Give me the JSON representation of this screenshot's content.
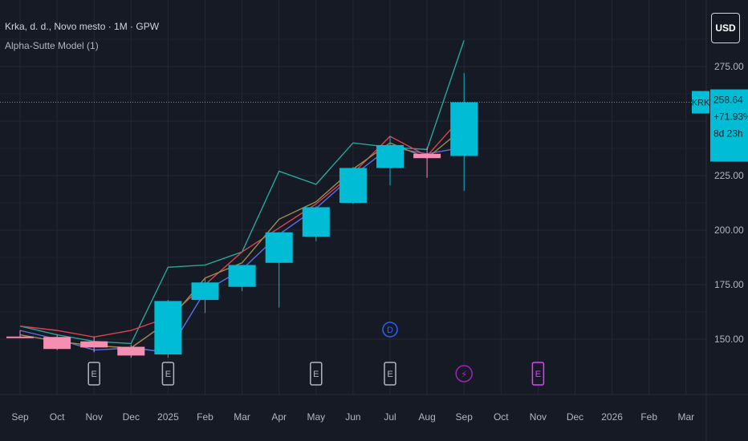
{
  "header": {
    "symbol_line": "Krka, d. d., Novo mesto · 1M · GPW",
    "indicator_line": "Alpha-Sutte Model (1)",
    "currency_button": "USD"
  },
  "price_tag": {
    "ticker": "KRK",
    "price": "258.64",
    "change": "+71.93%",
    "countdown": "8d 23h"
  },
  "colors": {
    "background": "#161a25",
    "grid": "#232835",
    "up": "#00bcd4",
    "down": "#f48fb1",
    "forecast_teal": "#26a69a",
    "forecast_blue": "#5b6ee8",
    "forecast_red": "#e0424f",
    "forecast_olive": "#9e8a52"
  },
  "chart_data": {
    "type": "candlestick",
    "x_ticks": [
      "Sep",
      "Oct",
      "Nov",
      "Dec",
      "2025",
      "Feb",
      "Mar",
      "Apr",
      "May",
      "Jun",
      "Jul",
      "Aug",
      "Sep",
      "Oct",
      "Nov",
      "Dec",
      "2026",
      "Feb",
      "Mar"
    ],
    "y_ticks": [
      150,
      175,
      200,
      225,
      250,
      275
    ],
    "y_tick_labels": [
      "150.00",
      "175.00",
      "200.00",
      "225.00",
      "250.00",
      "275.00"
    ],
    "ylim": [
      135,
      295
    ],
    "last_price": 258.64,
    "candles": [
      {
        "x": "Sep",
        "open": 151.2,
        "high": 154.0,
        "low": 150.5,
        "close": 150.7
      },
      {
        "x": "Oct",
        "open": 151.0,
        "high": 152.0,
        "low": 145.0,
        "close": 145.5
      },
      {
        "x": "Nov",
        "open": 149.0,
        "high": 151.0,
        "low": 144.0,
        "close": 146.2
      },
      {
        "x": "Dec",
        "open": 146.5,
        "high": 147.5,
        "low": 141.5,
        "close": 142.5
      },
      {
        "x": "2025",
        "open": 143.0,
        "high": 168.0,
        "low": 141.5,
        "close": 167.5
      },
      {
        "x": "Feb",
        "open": 168.0,
        "high": 178.0,
        "low": 162.0,
        "close": 176.0
      },
      {
        "x": "Mar",
        "open": 174.0,
        "high": 184.0,
        "low": 172.0,
        "close": 184.0
      },
      {
        "x": "Apr",
        "open": 185.0,
        "high": 199.0,
        "low": 164.5,
        "close": 199.0
      },
      {
        "x": "May",
        "open": 197.0,
        "high": 211.0,
        "low": 195.0,
        "close": 210.5
      },
      {
        "x": "Jun",
        "open": 212.5,
        "high": 229.0,
        "low": 212.0,
        "close": 228.5
      },
      {
        "x": "Jul",
        "open": 228.5,
        "high": 243.0,
        "low": 220.5,
        "close": 239.0
      },
      {
        "x": "Aug",
        "open": 235.0,
        "high": 238.0,
        "low": 224.0,
        "close": 233.0
      },
      {
        "x": "Sep",
        "open": 234.0,
        "high": 272.0,
        "low": 218.0,
        "close": 258.64
      }
    ],
    "forecast_series": [
      {
        "color": "forecast_teal",
        "points": [
          [
            "Sep",
            156
          ],
          [
            "Oct",
            152
          ],
          [
            "Nov",
            149
          ],
          [
            "Dec",
            148
          ],
          [
            "2025",
            183
          ],
          [
            "Feb",
            184
          ],
          [
            "Mar",
            190
          ],
          [
            "Apr",
            227
          ],
          [
            "May",
            221
          ],
          [
            "Jun",
            240
          ],
          [
            "Jul",
            238
          ],
          [
            "Aug",
            237
          ],
          [
            "Sep",
            287
          ]
        ]
      },
      {
        "color": "forecast_blue",
        "points": [
          [
            "Sep",
            154
          ],
          [
            "Oct",
            150
          ],
          [
            "Nov",
            145
          ],
          [
            "Dec",
            146
          ],
          [
            "2025",
            144
          ],
          [
            "Feb",
            172
          ],
          [
            "Mar",
            182
          ],
          [
            "Apr",
            198
          ],
          [
            "May",
            210
          ],
          [
            "Jun",
            225
          ],
          [
            "Jul",
            238
          ],
          [
            "Aug",
            235
          ],
          [
            "Sep",
            238
          ]
        ]
      },
      {
        "color": "forecast_red",
        "points": [
          [
            "Sep",
            156
          ],
          [
            "Oct",
            154
          ],
          [
            "Nov",
            151
          ],
          [
            "Dec",
            154
          ],
          [
            "2025",
            160
          ],
          [
            "Feb",
            175
          ],
          [
            "Mar",
            190
          ],
          [
            "Apr",
            201
          ],
          [
            "May",
            212
          ],
          [
            "Jun",
            226
          ],
          [
            "Jul",
            243
          ],
          [
            "Aug",
            234
          ],
          [
            "Sep",
            253
          ]
        ]
      },
      {
        "color": "forecast_olive",
        "points": [
          [
            "Sep",
            152
          ],
          [
            "Oct",
            149
          ],
          [
            "Nov",
            147
          ],
          [
            "Dec",
            146
          ],
          [
            "2025",
            158
          ],
          [
            "Feb",
            178
          ],
          [
            "Mar",
            185
          ],
          [
            "Apr",
            205
          ],
          [
            "May",
            213
          ],
          [
            "Jun",
            228
          ],
          [
            "Jul",
            240
          ],
          [
            "Aug",
            233
          ],
          [
            "Sep",
            247
          ]
        ]
      }
    ],
    "event_markers": [
      {
        "x": "Nov",
        "label": "E",
        "kind": "earnings",
        "color": "#b2b5be"
      },
      {
        "x": "2025",
        "label": "E",
        "kind": "earnings",
        "color": "#b2b5be"
      },
      {
        "x": "May",
        "label": "E",
        "kind": "earnings",
        "color": "#b2b5be"
      },
      {
        "x": "Jul",
        "label": "E",
        "kind": "earnings",
        "color": "#b2b5be"
      },
      {
        "x": "Jul",
        "label": "D",
        "kind": "dividend",
        "color": "#2962ff"
      },
      {
        "x": "Sep",
        "label": "⚡",
        "kind": "split",
        "color": "#9c27b0"
      },
      {
        "x": "Nov",
        "label": "E",
        "kind": "earnings-upcoming",
        "color": "#e040fb"
      }
    ]
  }
}
